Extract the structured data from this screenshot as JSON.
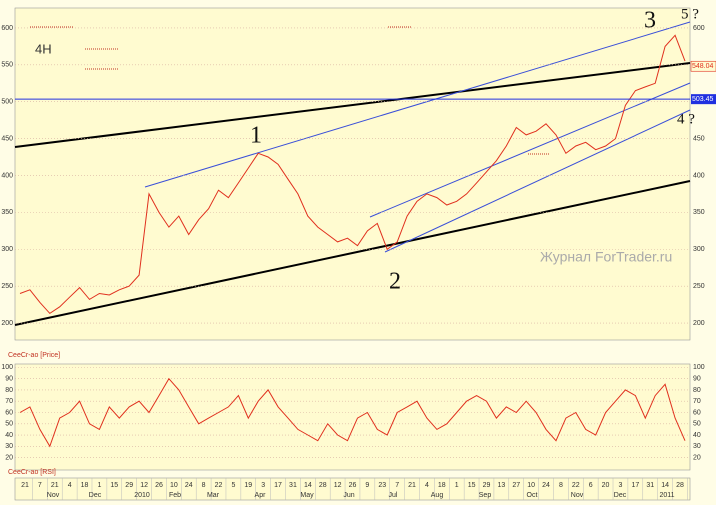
{
  "chart_data": [
    {
      "type": "line",
      "name": "CeeCr-ao [Price]",
      "color": "#e0301e",
      "timeframe": "4H",
      "watermark": "Журнал ForTrader.ru",
      "values": [
        240,
        245,
        228,
        213,
        222,
        235,
        248,
        232,
        240,
        238,
        245,
        250,
        265,
        375,
        350,
        330,
        345,
        320,
        340,
        355,
        380,
        370,
        390,
        410,
        430,
        425,
        415,
        395,
        375,
        345,
        330,
        320,
        310,
        315,
        305,
        325,
        335,
        300,
        310,
        345,
        365,
        375,
        370,
        360,
        365,
        375,
        390,
        405,
        420,
        440,
        465,
        455,
        460,
        470,
        455,
        430,
        440,
        445,
        435,
        440,
        450,
        495,
        515,
        520,
        525,
        575,
        590,
        555
      ],
      "ylim": [
        177,
        627
      ],
      "yticks": [
        200,
        250,
        300,
        350,
        400,
        450,
        500,
        550,
        600
      ],
      "grid": true,
      "last_price": 548.04,
      "level": 503.45,
      "annotations": [
        "1",
        "2",
        "3",
        "4 ?",
        "5 ?"
      ]
    },
    {
      "type": "line",
      "name": "CeeCr-ao [RSI]",
      "color": "#e0301e",
      "values": [
        60,
        65,
        45,
        30,
        55,
        60,
        70,
        50,
        45,
        65,
        55,
        65,
        70,
        60,
        75,
        90,
        80,
        65,
        50,
        55,
        60,
        65,
        75,
        55,
        70,
        80,
        65,
        55,
        45,
        40,
        35,
        50,
        40,
        35,
        55,
        60,
        45,
        40,
        60,
        65,
        70,
        55,
        45,
        50,
        60,
        70,
        75,
        70,
        55,
        65,
        60,
        70,
        60,
        45,
        35,
        55,
        60,
        45,
        40,
        60,
        70,
        80,
        75,
        55,
        75,
        85,
        55,
        35
      ],
      "ylim": [
        9,
        103
      ],
      "yticks": [
        20,
        30,
        40,
        50,
        60,
        70,
        80,
        90,
        100
      ],
      "grid": true
    }
  ],
  "x_axis": {
    "days": [
      "21",
      "7",
      "21",
      "4",
      "18",
      "1",
      "15",
      "29",
      "12",
      "26",
      "10",
      "24",
      "8",
      "22",
      "5",
      "19",
      "3",
      "17",
      "31",
      "14",
      "28",
      "12",
      "26",
      "9",
      "23",
      "7",
      "21",
      "4",
      "18",
      "1",
      "15",
      "29",
      "13",
      "27",
      "10",
      "24",
      "8",
      "22",
      "6",
      "20",
      "3",
      "17",
      "31",
      "14",
      "28"
    ],
    "months": [
      "Nov",
      "Dec",
      "2010",
      "Feb",
      "Mar",
      "Apr",
      "May",
      "Jun",
      "Jul",
      "Aug",
      "Sep",
      "Oct",
      "Nov",
      "Dec",
      "2011"
    ]
  }
}
